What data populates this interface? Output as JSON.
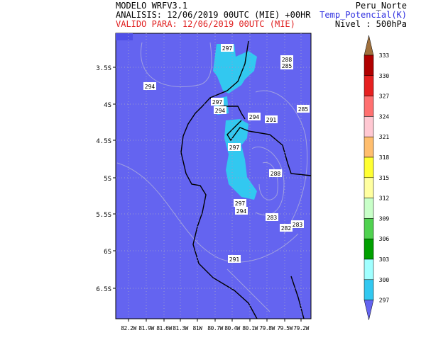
{
  "header": {
    "model": "MODELO WRFV3.1",
    "analysis": "ANALISIS: 12/06/2019 00UTC (MIE) +00HR",
    "valid": "VALIDO PARA: 12/06/2019 00UTC (MIE)",
    "region": "Peru_Norte",
    "variable": "Temp_Potencial(K)",
    "level": "Nivel : 500hPa"
  },
  "map": {
    "lat_labels": [
      "3.5S",
      "4S",
      "4.5S",
      "5S",
      "5.5S",
      "6S",
      "6.5S"
    ],
    "lon_labels": [
      "82.2W",
      "81.9W",
      "81.6W",
      "81.3W",
      "81W",
      "80.7W",
      "80.4W",
      "80.1W",
      "79.8W",
      "79.5W",
      "79.2W"
    ],
    "contour_labels": [
      "297",
      "288",
      "285",
      "294",
      "297",
      "294",
      "294",
      "291",
      "285",
      "297",
      "288",
      "297",
      "294",
      "283",
      "282",
      "283",
      "291"
    ]
  },
  "colorbar": {
    "labels": [
      "333",
      "330",
      "327",
      "324",
      "321",
      "318",
      "315",
      "312",
      "309",
      "306",
      "303",
      "300",
      "297"
    ],
    "colors": [
      "#a0703c",
      "#b00000",
      "#e62020",
      "#ff7070",
      "#ffc8d2",
      "#ffbe6e",
      "#ffff32",
      "#ffffa0",
      "#c8ffc8",
      "#50d250",
      "#00a000",
      "#a0ffff",
      "#32c8f0",
      "#6464f0"
    ]
  }
}
